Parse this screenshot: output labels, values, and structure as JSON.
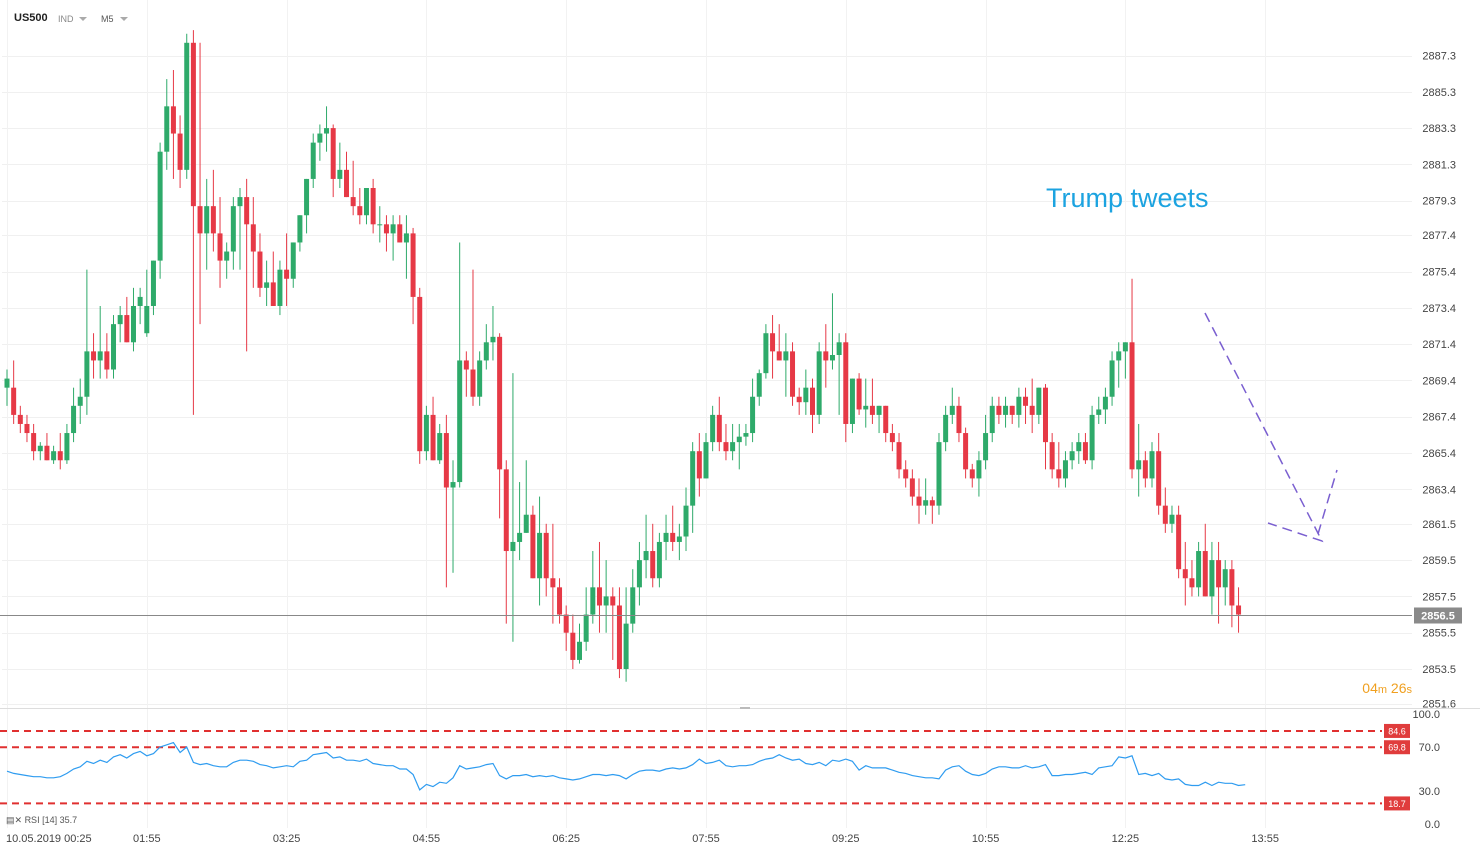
{
  "header": {
    "symbol": "US500",
    "instrument_type": "IND",
    "timeframe": "M5"
  },
  "timer": {
    "minutes": "04",
    "m_unit": "m",
    "seconds": "26",
    "s_unit": "s"
  },
  "annotation": {
    "text": "Trump tweets",
    "color": "#1ca3e0"
  },
  "current_price": {
    "label": "2856.5",
    "value": 2856.5
  },
  "rsi": {
    "label": "RSI [14]",
    "value": "35.7",
    "levels": [
      {
        "label": "84.6",
        "value": 84.6
      },
      {
        "label": "69.8",
        "value": 69.8
      },
      {
        "label": "18.7",
        "value": 18.7
      }
    ],
    "axis_ticks": [
      "100.0",
      "70.0",
      "30.0",
      "0.0"
    ],
    "tick_values": [
      100,
      70,
      30,
      0
    ],
    "color": "#2f9cf0"
  },
  "colors": {
    "up": "#2eaa6a",
    "down": "#e63946",
    "level_line": "#e03030",
    "dashed_arrow": "#7a5fd0"
  },
  "chart_data": {
    "type": "candlestick",
    "title": "",
    "xlabel": "",
    "ylabel": "",
    "ylim": [
      2851.6,
      2888.7
    ],
    "y_ticks": [
      "2887.3",
      "2885.3",
      "2883.3",
      "2881.3",
      "2879.3",
      "2877.4",
      "2875.4",
      "2873.4",
      "2871.4",
      "2869.4",
      "2867.4",
      "2865.4",
      "2863.4",
      "2861.5",
      "2859.5",
      "2857.5",
      "2855.5",
      "2853.5",
      "2851.6"
    ],
    "y_tick_values": [
      2887.3,
      2885.3,
      2883.3,
      2881.3,
      2879.3,
      2877.4,
      2875.4,
      2873.4,
      2871.4,
      2869.4,
      2867.4,
      2865.4,
      2863.4,
      2861.5,
      2859.5,
      2857.5,
      2855.5,
      2853.5,
      2851.6
    ],
    "x_labels": [
      "10.05.2019  00:25",
      "01:55",
      "03:25",
      "04:55",
      "06:25",
      "07:55",
      "09:25",
      "10:55",
      "12:25",
      "13:55"
    ],
    "x_label_bars": [
      0,
      21,
      42,
      63,
      84,
      105,
      126,
      147,
      168,
      189
    ],
    "ohlc": [
      [
        2869.0,
        2870.0,
        2868.0,
        2869.5
      ],
      [
        2869.0,
        2870.5,
        2867.0,
        2867.5
      ],
      [
        2867.5,
        2868.0,
        2866.5,
        2867.0
      ],
      [
        2867.0,
        2867.5,
        2866.0,
        2866.5
      ],
      [
        2866.5,
        2867.0,
        2865.0,
        2865.5
      ],
      [
        2865.5,
        2866.0,
        2865.0,
        2865.8
      ],
      [
        2865.8,
        2866.5,
        2865.0,
        2865.0
      ],
      [
        2865.0,
        2865.8,
        2864.8,
        2865.5
      ],
      [
        2865.5,
        2866.5,
        2864.5,
        2865.0
      ],
      [
        2865.0,
        2867.0,
        2864.8,
        2866.5
      ],
      [
        2866.5,
        2869.0,
        2866.0,
        2868.0
      ],
      [
        2868.0,
        2869.5,
        2867.0,
        2868.5
      ],
      [
        2868.5,
        2875.5,
        2867.5,
        2871.0
      ],
      [
        2871.0,
        2872.0,
        2869.5,
        2870.5
      ],
      [
        2870.5,
        2873.5,
        2869.5,
        2871.0
      ],
      [
        2871.0,
        2872.0,
        2869.5,
        2870.0
      ],
      [
        2870.0,
        2873.0,
        2869.5,
        2872.5
      ],
      [
        2872.5,
        2873.5,
        2871.5,
        2873.0
      ],
      [
        2873.0,
        2874.0,
        2871.5,
        2871.5
      ],
      [
        2871.5,
        2874.5,
        2871.0,
        2873.5
      ],
      [
        2873.5,
        2874.5,
        2872.5,
        2874.0
      ],
      [
        2872.0,
        2875.5,
        2871.8,
        2873.5
      ],
      [
        2873.5,
        2876.0,
        2873.0,
        2876.0
      ],
      [
        2876.0,
        2882.5,
        2875.0,
        2882.0
      ],
      [
        2882.0,
        2886.0,
        2881.0,
        2884.5
      ],
      [
        2884.5,
        2886.5,
        2880.5,
        2883.0
      ],
      [
        2883.0,
        2884.0,
        2880.0,
        2881.0
      ],
      [
        2881.0,
        2888.5,
        2880.5,
        2888.0
      ],
      [
        2888.0,
        2888.7,
        2867.5,
        2879.0
      ],
      [
        2879.0,
        2888.0,
        2872.5,
        2877.5
      ],
      [
        2877.5,
        2880.5,
        2875.5,
        2879.0
      ],
      [
        2879.0,
        2881.0,
        2876.5,
        2877.5
      ],
      [
        2877.5,
        2879.5,
        2874.5,
        2876.0
      ],
      [
        2876.0,
        2877.0,
        2875.0,
        2876.5
      ],
      [
        2876.5,
        2879.5,
        2875.5,
        2879.0
      ],
      [
        2879.0,
        2880.0,
        2875.5,
        2879.5
      ],
      [
        2879.5,
        2880.5,
        2871.0,
        2878.0
      ],
      [
        2878.0,
        2879.5,
        2874.5,
        2876.5
      ],
      [
        2876.5,
        2877.5,
        2874.0,
        2874.5
      ],
      [
        2874.5,
        2876.0,
        2873.5,
        2874.8
      ],
      [
        2874.8,
        2876.5,
        2873.5,
        2873.5
      ],
      [
        2873.5,
        2876.0,
        2873.0,
        2875.5
      ],
      [
        2875.5,
        2877.5,
        2873.5,
        2875.0
      ],
      [
        2875.0,
        2877.0,
        2874.5,
        2877.0
      ],
      [
        2877.0,
        2878.5,
        2876.5,
        2878.5
      ],
      [
        2878.5,
        2880.5,
        2877.5,
        2880.5
      ],
      [
        2880.5,
        2883.0,
        2880.0,
        2882.5
      ],
      [
        2882.5,
        2883.5,
        2881.5,
        2883.0
      ],
      [
        2883.0,
        2884.5,
        2882.0,
        2883.3
      ],
      [
        2883.3,
        2883.5,
        2879.5,
        2880.5
      ],
      [
        2880.5,
        2882.5,
        2880.0,
        2881.0
      ],
      [
        2881.0,
        2882.0,
        2879.5,
        2879.5
      ],
      [
        2879.5,
        2881.5,
        2878.5,
        2879.0
      ],
      [
        2879.0,
        2880.0,
        2878.0,
        2878.5
      ],
      [
        2878.5,
        2880.0,
        2878.0,
        2880.0
      ],
      [
        2880.0,
        2880.5,
        2877.5,
        2878.0
      ],
      [
        2878.0,
        2879.0,
        2877.0,
        2878.0
      ],
      [
        2878.0,
        2878.5,
        2876.5,
        2877.5
      ],
      [
        2877.5,
        2878.5,
        2876.0,
        2878.0
      ],
      [
        2878.0,
        2878.5,
        2877.0,
        2877.0
      ],
      [
        2877.0,
        2878.5,
        2875.0,
        2877.5
      ],
      [
        2877.5,
        2877.8,
        2872.5,
        2874.0
      ],
      [
        2874.0,
        2874.5,
        2864.8,
        2865.5
      ],
      [
        2865.5,
        2868.0,
        2865.0,
        2867.5
      ],
      [
        2867.5,
        2868.5,
        2865.0,
        2865.0
      ],
      [
        2865.0,
        2867.0,
        2864.8,
        2866.5
      ],
      [
        2866.5,
        2867.5,
        2858.0,
        2863.5
      ],
      [
        2863.5,
        2865.0,
        2858.8,
        2863.8
      ],
      [
        2863.8,
        2877.0,
        2863.5,
        2870.5
      ],
      [
        2870.5,
        2871.0,
        2868.5,
        2870.0
      ],
      [
        2870.0,
        2875.5,
        2868.0,
        2868.5
      ],
      [
        2868.5,
        2871.0,
        2868.0,
        2870.5
      ],
      [
        2870.5,
        2872.5,
        2870.0,
        2871.5
      ],
      [
        2871.5,
        2873.5,
        2870.5,
        2871.8
      ],
      [
        2871.8,
        2872.0,
        2861.8,
        2864.5
      ],
      [
        2864.5,
        2865.0,
        2856.0,
        2860.0
      ],
      [
        2860.0,
        2869.8,
        2855.0,
        2860.5
      ],
      [
        2860.5,
        2863.8,
        2859.5,
        2861.0
      ],
      [
        2861.0,
        2865.0,
        2861.0,
        2862.0
      ],
      [
        2862.0,
        2862.5,
        2858.5,
        2858.5
      ],
      [
        2858.5,
        2863.0,
        2857.0,
        2861.0
      ],
      [
        2861.0,
        2861.5,
        2857.5,
        2858.5
      ],
      [
        2858.5,
        2861.5,
        2856.0,
        2858.0
      ],
      [
        2858.0,
        2858.5,
        2856.0,
        2856.5
      ],
      [
        2856.5,
        2857.0,
        2854.5,
        2855.5
      ],
      [
        2855.5,
        2856.5,
        2853.5,
        2854.0
      ],
      [
        2854.0,
        2856.0,
        2853.8,
        2855.0
      ],
      [
        2855.0,
        2858.0,
        2854.5,
        2856.5
      ],
      [
        2856.5,
        2860.0,
        2856.0,
        2858.0
      ],
      [
        2858.0,
        2860.5,
        2855.5,
        2857.0
      ],
      [
        2857.0,
        2859.5,
        2855.5,
        2857.5
      ],
      [
        2857.5,
        2858.0,
        2854.0,
        2857.0
      ],
      [
        2857.0,
        2858.0,
        2853.0,
        2853.5
      ],
      [
        2853.5,
        2858.0,
        2852.8,
        2856.0
      ],
      [
        2856.0,
        2859.0,
        2855.5,
        2858.0
      ],
      [
        2858.0,
        2860.5,
        2857.0,
        2859.5
      ],
      [
        2859.5,
        2862.0,
        2858.5,
        2860.0
      ],
      [
        2860.0,
        2861.5,
        2858.0,
        2858.5
      ],
      [
        2858.5,
        2861.0,
        2858.0,
        2860.5
      ],
      [
        2860.5,
        2862.0,
        2859.5,
        2861.0
      ],
      [
        2861.0,
        2862.5,
        2860.0,
        2860.5
      ],
      [
        2860.5,
        2861.5,
        2859.5,
        2860.8
      ],
      [
        2860.8,
        2863.5,
        2860.0,
        2862.5
      ],
      [
        2862.5,
        2866.0,
        2861.0,
        2865.5
      ],
      [
        2865.5,
        2866.5,
        2863.0,
        2864.0
      ],
      [
        2864.0,
        2866.5,
        2864.0,
        2866.0
      ],
      [
        2866.0,
        2868.0,
        2865.5,
        2867.5
      ],
      [
        2867.5,
        2868.5,
        2865.5,
        2866.0
      ],
      [
        2866.0,
        2867.0,
        2865.0,
        2865.5
      ],
      [
        2865.5,
        2867.0,
        2865.0,
        2866.0
      ],
      [
        2866.0,
        2867.0,
        2864.5,
        2866.3
      ],
      [
        2866.3,
        2867.0,
        2865.8,
        2866.5
      ],
      [
        2866.5,
        2869.5,
        2866.0,
        2868.5
      ],
      [
        2868.5,
        2870.0,
        2868.0,
        2869.8
      ],
      [
        2869.8,
        2872.5,
        2869.5,
        2872.0
      ],
      [
        2872.0,
        2873.0,
        2869.5,
        2871.0
      ],
      [
        2871.0,
        2872.5,
        2870.5,
        2870.5
      ],
      [
        2870.5,
        2872.0,
        2868.5,
        2871.0
      ],
      [
        2871.0,
        2871.5,
        2868.0,
        2868.5
      ],
      [
        2868.5,
        2869.0,
        2867.5,
        2868.2
      ],
      [
        2868.2,
        2870.0,
        2867.5,
        2869.0
      ],
      [
        2869.0,
        2869.5,
        2866.5,
        2867.5
      ],
      [
        2867.5,
        2871.5,
        2867.0,
        2871.0
      ],
      [
        2871.0,
        2872.5,
        2869.0,
        2870.5
      ],
      [
        2870.5,
        2874.2,
        2870.0,
        2870.8
      ],
      [
        2870.8,
        2872.0,
        2867.5,
        2871.5
      ],
      [
        2871.5,
        2872.0,
        2866.0,
        2867.0
      ],
      [
        2867.0,
        2869.5,
        2866.5,
        2869.5
      ],
      [
        2869.5,
        2869.8,
        2867.5,
        2867.8
      ],
      [
        2867.8,
        2869.5,
        2866.8,
        2868.0
      ],
      [
        2868.0,
        2869.5,
        2867.0,
        2867.5
      ],
      [
        2867.5,
        2868.0,
        2866.5,
        2868.0
      ],
      [
        2868.0,
        2868.0,
        2866.0,
        2866.5
      ],
      [
        2866.5,
        2867.0,
        2865.5,
        2866.0
      ],
      [
        2866.0,
        2866.5,
        2864.0,
        2864.5
      ],
      [
        2864.5,
        2865.0,
        2863.5,
        2864.0
      ],
      [
        2864.0,
        2864.5,
        2862.5,
        2863.0
      ],
      [
        2863.0,
        2864.0,
        2861.5,
        2862.5
      ],
      [
        2862.5,
        2864.0,
        2862.0,
        2862.8
      ],
      [
        2862.8,
        2863.0,
        2861.5,
        2862.5
      ],
      [
        2862.5,
        2866.5,
        2862.0,
        2866.0
      ],
      [
        2866.0,
        2868.0,
        2865.5,
        2867.5
      ],
      [
        2867.5,
        2869.0,
        2867.0,
        2868.0
      ],
      [
        2868.0,
        2868.5,
        2866.0,
        2866.5
      ],
      [
        2866.5,
        2866.8,
        2864.0,
        2864.5
      ],
      [
        2864.5,
        2864.8,
        2863.5,
        2864.0
      ],
      [
        2864.0,
        2865.5,
        2863.0,
        2865.0
      ],
      [
        2865.0,
        2867.5,
        2864.5,
        2866.5
      ],
      [
        2866.5,
        2868.5,
        2866.0,
        2868.0
      ],
      [
        2868.0,
        2868.5,
        2867.0,
        2867.5
      ],
      [
        2867.5,
        2868.5,
        2866.8,
        2868.0
      ],
      [
        2868.0,
        2868.0,
        2867.0,
        2867.5
      ],
      [
        2867.5,
        2869.0,
        2866.8,
        2868.5
      ],
      [
        2868.5,
        2869.0,
        2867.0,
        2868.0
      ],
      [
        2868.0,
        2869.5,
        2866.5,
        2867.5
      ],
      [
        2867.5,
        2869.0,
        2867.0,
        2869.0
      ],
      [
        2869.0,
        2869.2,
        2864.5,
        2866.0
      ],
      [
        2866.0,
        2866.5,
        2864.0,
        2864.5
      ],
      [
        2864.5,
        2866.0,
        2863.5,
        2864.0
      ],
      [
        2864.0,
        2865.5,
        2863.5,
        2865.0
      ],
      [
        2865.0,
        2866.0,
        2864.5,
        2865.5
      ],
      [
        2865.5,
        2866.5,
        2864.8,
        2866.0
      ],
      [
        2866.0,
        2866.5,
        2864.8,
        2865.0
      ],
      [
        2865.0,
        2868.0,
        2864.5,
        2867.5
      ],
      [
        2867.5,
        2868.5,
        2867.0,
        2867.8
      ],
      [
        2867.8,
        2869.0,
        2867.0,
        2868.5
      ],
      [
        2868.5,
        2871.0,
        2868.0,
        2870.5
      ],
      [
        2870.5,
        2871.5,
        2869.0,
        2871.0
      ],
      [
        2871.0,
        2871.5,
        2869.5,
        2871.5
      ],
      [
        2871.5,
        2875.0,
        2864.0,
        2864.5
      ],
      [
        2864.5,
        2867.0,
        2863.0,
        2865.0
      ],
      [
        2865.0,
        2865.5,
        2863.5,
        2864.0
      ],
      [
        2864.0,
        2866.0,
        2863.5,
        2865.5
      ],
      [
        2865.5,
        2866.5,
        2862.0,
        2862.5
      ],
      [
        2862.5,
        2863.5,
        2861.0,
        2861.5
      ],
      [
        2861.5,
        2862.5,
        2861.0,
        2862.0
      ],
      [
        2862.0,
        2862.5,
        2858.5,
        2859.0
      ],
      [
        2859.0,
        2860.5,
        2857.0,
        2858.5
      ],
      [
        2858.5,
        2859.5,
        2857.5,
        2858.0
      ],
      [
        2858.0,
        2860.5,
        2857.5,
        2860.0
      ],
      [
        2860.0,
        2861.5,
        2857.5,
        2857.5
      ],
      [
        2857.5,
        2860.5,
        2856.5,
        2859.5
      ],
      [
        2859.5,
        2860.5,
        2856.0,
        2858.0
      ],
      [
        2858.0,
        2859.5,
        2857.0,
        2859.0
      ],
      [
        2859.0,
        2859.5,
        2855.8,
        2857.0
      ],
      [
        2857.0,
        2858.0,
        2855.5,
        2856.5
      ]
    ],
    "rsi_values": [
      48,
      46,
      45,
      44,
      43,
      43,
      42,
      42,
      43,
      46,
      50,
      52,
      57,
      55,
      58,
      56,
      61,
      63,
      60,
      64,
      66,
      62,
      64,
      70,
      72,
      74,
      65,
      70,
      56,
      54,
      55,
      53,
      52,
      52,
      56,
      58,
      58,
      57,
      54,
      53,
      51,
      52,
      53,
      52,
      57,
      58,
      63,
      64,
      65,
      60,
      61,
      58,
      58,
      57,
      59,
      55,
      54,
      53,
      53,
      50,
      50,
      45,
      31,
      36,
      34,
      38,
      37,
      42,
      53,
      50,
      51,
      52,
      54,
      55,
      44,
      41,
      44,
      44,
      45,
      43,
      44,
      43,
      44,
      42,
      41,
      40,
      41,
      43,
      45,
      45,
      44,
      45,
      44,
      41,
      45,
      48,
      49,
      49,
      48,
      50,
      51,
      50,
      51,
      54,
      59,
      55,
      56,
      58,
      53,
      52,
      53,
      53,
      54,
      57,
      59,
      60,
      63,
      60,
      58,
      59,
      55,
      54,
      56,
      53,
      58,
      57,
      59,
      57,
      49,
      53,
      51,
      51,
      51,
      49,
      47,
      46,
      44,
      43,
      42,
      42,
      41,
      49,
      52,
      53,
      48,
      45,
      44,
      46,
      50,
      52,
      52,
      51,
      51,
      53,
      51,
      52,
      54,
      44,
      44,
      45,
      45,
      46,
      47,
      45,
      51,
      52,
      53,
      61,
      60,
      62,
      45,
      46,
      44,
      46,
      41,
      40,
      41,
      36,
      35,
      35,
      38,
      35,
      38,
      37,
      37,
      35,
      35.7
    ]
  }
}
